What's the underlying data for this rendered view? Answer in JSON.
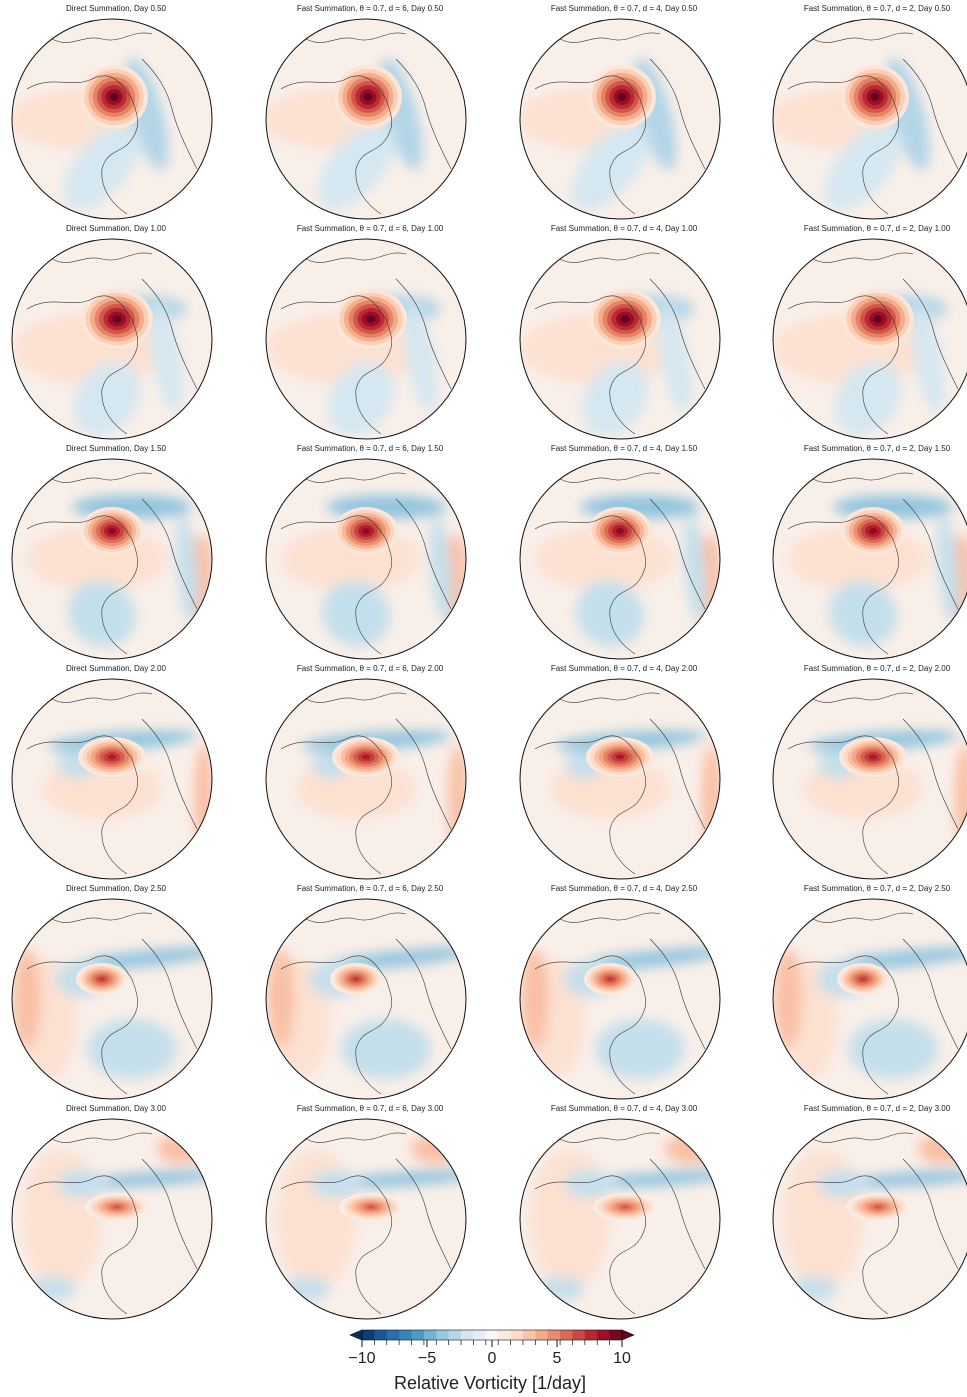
{
  "chart_data": {
    "type": "heatmap",
    "description_fields": [
      "panels",
      "colorbar"
    ],
    "row_days": [
      "0.50",
      "1.00",
      "1.50",
      "2.00",
      "2.50",
      "3.00"
    ],
    "column_methods": [
      {
        "name": "Direct Summation"
      },
      {
        "name": "Fast Summation",
        "theta": "0.7",
        "d": "6"
      },
      {
        "name": "Fast Summation",
        "theta": "0.7",
        "d": "4"
      },
      {
        "name": "Fast Summation",
        "theta": "0.7",
        "d": "2"
      }
    ],
    "panels": [
      {
        "row": 0,
        "titles": [
          "Direct Summation, Day 0.50",
          "Fast Summation, θ = 0.7, d = 6, Day 0.50",
          "Fast Summation, θ = 0.7, d = 4, Day 0.50",
          "Fast Summation, θ = 0.7, d = 2, Day 0.50"
        ],
        "peak_vorticity": 10,
        "min_vorticity": -3
      },
      {
        "row": 1,
        "titles": [
          "Direct Summation, Day 1.00",
          "Fast Summation, θ = 0.7, d = 6, Day 1.00",
          "Fast Summation, θ = 0.7, d = 4, Day 1.00",
          "Fast Summation, θ = 0.7, d = 2, Day 1.00"
        ],
        "peak_vorticity": 10,
        "min_vorticity": -3
      },
      {
        "row": 2,
        "titles": [
          "Direct Summation, Day 1.50",
          "Fast Summation, θ = 0.7, d = 6, Day 1.50",
          "Fast Summation, θ = 0.7, d = 4, Day 1.50",
          "Fast Summation, θ = 0.7, d = 2, Day 1.50"
        ],
        "peak_vorticity": 9,
        "min_vorticity": -4
      },
      {
        "row": 3,
        "titles": [
          "Direct Summation, Day 2.00",
          "Fast Summation, θ = 0.7, d = 6, Day 2.00",
          "Fast Summation, θ = 0.7, d = 4, Day 2.00",
          "Fast Summation, θ = 0.7, d = 2, Day 2.00"
        ],
        "peak_vorticity": 8,
        "min_vorticity": -4
      },
      {
        "row": 4,
        "titles": [
          "Direct Summation, Day 2.50",
          "Fast Summation, θ = 0.7, d = 6, Day 2.50",
          "Fast Summation, θ = 0.7, d = 4, Day 2.50",
          "Fast Summation, θ = 0.7, d = 2, Day 2.50"
        ],
        "peak_vorticity": 7,
        "min_vorticity": -4
      },
      {
        "row": 5,
        "titles": [
          "Direct Summation, Day 3.00",
          "Fast Summation, θ = 0.7, d = 6, Day 3.00",
          "Fast Summation, θ = 0.7, d = 4, Day 3.00",
          "Fast Summation, θ = 0.7, d = 2, Day 3.00"
        ],
        "peak_vorticity": 6,
        "min_vorticity": -4
      }
    ],
    "colorbar": {
      "label": "Relative Vorticity [1/day]",
      "min": -10,
      "max": 10,
      "extend": "both",
      "orientation": "horizontal",
      "ticks": [
        -10,
        -5,
        0,
        5,
        10
      ],
      "tick_labels": [
        "−10",
        "−5",
        "0",
        "5",
        "10"
      ],
      "levels": 21,
      "colormap": "RdBu_r",
      "colors": [
        "#053061",
        "#2166ac",
        "#4393c3",
        "#92c5de",
        "#d1e5f0",
        "#f7f7f7",
        "#fddbc7",
        "#f4a582",
        "#d6604d",
        "#b2182b",
        "#67001f"
      ]
    }
  }
}
